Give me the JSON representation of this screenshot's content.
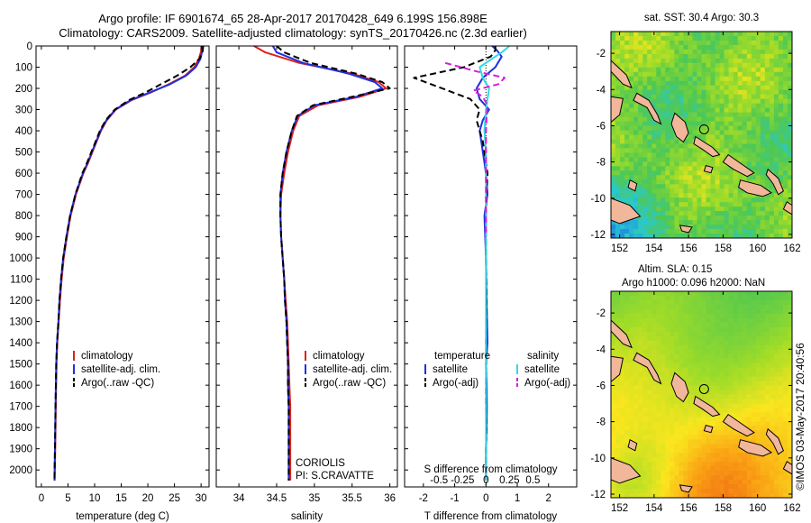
{
  "title_line1": "Argo profile: IF 6901674_65 28-Apr-2017 20170428_649 6.199S 156.898E",
  "title_line2": "Climatology: CARS2009. Satellite-adjusted climatology: synTS_20170426.nc (2.3d earlier)",
  "stamp": "©IMOS 03-May-2017 20:40:56",
  "colors": {
    "climatology": "#e0201b",
    "satellite": "#1f2fe0",
    "argo": "#000000",
    "sat_salinity": "#33d8e6",
    "argo_salinity": "#d71fd7",
    "land": "#f2b79a"
  },
  "chart_data": [
    {
      "type": "line",
      "id": "temperature",
      "xlabel": "temperature (deg C)",
      "ylabel": "",
      "xlim": [
        -1,
        31.5
      ],
      "ylim": [
        2080,
        0
      ],
      "y_reversed": true,
      "xticks": [
        0,
        5,
        10,
        15,
        20,
        25,
        30
      ],
      "yticks": [
        0,
        100,
        200,
        300,
        400,
        500,
        600,
        700,
        800,
        900,
        1000,
        1100,
        1200,
        1300,
        1400,
        1500,
        1600,
        1700,
        1800,
        1900,
        2000
      ],
      "legend": {
        "position": "bottom-left",
        "entries": [
          "climatology",
          "satellite-adj. clim.",
          "Argo(..raw -QC)"
        ]
      },
      "series": [
        {
          "name": "climatology",
          "style": "solid",
          "color": "#e0201b",
          "x": [
            30.1,
            30.0,
            29.6,
            28.7,
            27.0,
            24.0,
            20.5,
            17.0,
            14.0,
            12.3,
            11.2,
            10.4,
            9.6,
            8.8,
            7.9,
            6.5,
            5.5,
            4.8,
            4.2,
            3.8,
            3.5,
            3.25,
            3.0,
            2.85,
            2.7,
            2.6,
            2.5
          ],
          "y": [
            0,
            25,
            60,
            100,
            140,
            180,
            220,
            255,
            300,
            350,
            400,
            450,
            500,
            550,
            600,
            700,
            800,
            900,
            1000,
            1100,
            1200,
            1300,
            1400,
            1500,
            1700,
            1900,
            2050
          ]
        },
        {
          "name": "satellite-adj. clim.",
          "style": "solid",
          "color": "#1f2fe0",
          "x": [
            30.3,
            30.2,
            29.9,
            29.0,
            27.2,
            24.2,
            20.3,
            16.8,
            13.9,
            12.2,
            11.1,
            10.3,
            9.5,
            8.7,
            7.8,
            6.4,
            5.4,
            4.7,
            4.1,
            3.7,
            3.4,
            3.2,
            2.95,
            2.8,
            2.65,
            2.55,
            2.45
          ],
          "y": [
            0,
            25,
            60,
            100,
            140,
            180,
            220,
            255,
            300,
            350,
            400,
            450,
            500,
            550,
            600,
            700,
            800,
            900,
            1000,
            1100,
            1200,
            1300,
            1400,
            1500,
            1700,
            1900,
            2050
          ]
        },
        {
          "name": "Argo(..raw -QC)",
          "style": "dashed",
          "color": "#000000",
          "x": [
            30.4,
            30.3,
            29.7,
            28.0,
            25.5,
            22.5,
            19.5,
            16.5,
            13.8,
            12.1,
            11.0,
            10.2,
            9.4,
            8.6,
            7.7,
            6.4,
            5.4,
            4.7,
            4.1,
            3.7,
            3.4,
            3.2,
            2.95,
            2.8,
            2.65,
            2.55,
            2.45
          ],
          "y": [
            0,
            25,
            60,
            100,
            140,
            180,
            220,
            255,
            300,
            350,
            400,
            450,
            500,
            550,
            600,
            700,
            800,
            900,
            1000,
            1100,
            1200,
            1300,
            1400,
            1500,
            1700,
            1900,
            2050
          ]
        }
      ]
    },
    {
      "type": "line",
      "id": "salinity",
      "xlabel": "salinity",
      "ylabel": "",
      "xlim": [
        33.7,
        36.1
      ],
      "ylim": [
        2080,
        0
      ],
      "y_reversed": true,
      "xticks": [
        34,
        34.5,
        35,
        35.5,
        36
      ],
      "legend": {
        "position": "bottom-right",
        "entries": [
          "climatology",
          "satellite-adj. clim.",
          "Argo(..raw -QC)"
        ]
      },
      "annotations": [
        "CORIOLIS",
        "PI: S.CRAVATTE"
      ],
      "series": [
        {
          "name": "climatology",
          "style": "solid",
          "color": "#e0201b",
          "x": [
            34.2,
            34.35,
            34.8,
            35.5,
            35.85,
            35.95,
            35.6,
            35.05,
            34.8,
            34.72,
            34.65,
            34.6,
            34.56,
            34.55,
            34.56,
            34.58,
            34.6,
            34.62,
            34.64,
            34.65,
            34.66,
            34.67,
            34.68,
            34.68,
            34.68
          ],
          "y": [
            0,
            30,
            80,
            130,
            170,
            200,
            240,
            280,
            330,
            400,
            500,
            600,
            700,
            800,
            900,
            1000,
            1100,
            1200,
            1300,
            1400,
            1500,
            1600,
            1700,
            1900,
            2050
          ]
        },
        {
          "name": "satellite-adj. clim.",
          "style": "solid",
          "color": "#1f2fe0",
          "x": [
            34.45,
            34.5,
            34.85,
            35.45,
            35.8,
            35.9,
            35.55,
            35.0,
            34.78,
            34.7,
            34.63,
            34.58,
            34.55,
            34.55,
            34.56,
            34.58,
            34.6,
            34.61,
            34.63,
            34.64,
            34.65,
            34.65,
            34.66,
            34.66,
            34.66
          ],
          "y": [
            0,
            30,
            80,
            130,
            170,
            200,
            240,
            280,
            330,
            400,
            500,
            600,
            700,
            800,
            900,
            1000,
            1100,
            1200,
            1300,
            1400,
            1500,
            1600,
            1700,
            1900,
            2050
          ]
        },
        {
          "name": "Argo(..raw -QC)",
          "style": "dashed",
          "color": "#000000",
          "x": [
            34.5,
            34.6,
            34.95,
            35.55,
            35.9,
            36.0,
            35.5,
            34.98,
            34.77,
            34.7,
            34.63,
            34.58,
            34.55,
            34.55,
            34.56,
            34.58,
            34.6,
            34.61,
            34.63,
            34.64,
            34.65,
            34.65,
            34.66,
            34.66,
            34.66
          ],
          "y": [
            0,
            30,
            80,
            130,
            170,
            200,
            240,
            280,
            330,
            400,
            500,
            600,
            700,
            800,
            900,
            1000,
            1100,
            1200,
            1300,
            1400,
            1500,
            1600,
            1700,
            1900,
            2050
          ]
        }
      ]
    },
    {
      "type": "line",
      "id": "difference",
      "xlabel": "T difference from climatology",
      "xlabel_top": "S difference from climatology",
      "xlim": [
        -2.6,
        2.9
      ],
      "ylim": [
        2080,
        0
      ],
      "y_reversed": true,
      "xticks": [
        -2,
        -1,
        0,
        1,
        2
      ],
      "xticks_top": [
        {
          "value": -1.5,
          "label": "-0.5"
        },
        {
          "value": -0.75,
          "label": "-0.25"
        },
        {
          "value": 0,
          "label": "0"
        },
        {
          "value": 0.75,
          "label": "0.25"
        },
        {
          "value": 1.5,
          "label": "0.5"
        }
      ],
      "zero_line": true,
      "legend": {
        "position": "bottom",
        "left_title": "temperature",
        "right_title": "salinity",
        "entries": [
          "satellite",
          "Argo(-adj)",
          "satellite",
          "Argo(-adj)"
        ]
      },
      "series": [
        {
          "name": "T satellite",
          "legend": "satellite",
          "style": "solid",
          "color": "#1f2fe0",
          "x": [
            0.2,
            0.35,
            0.5,
            0.3,
            -0.1,
            -0.3,
            -0.2,
            0.1,
            -0.1,
            -0.2,
            -0.15,
            -0.1,
            -0.05,
            0,
            0.05,
            -0.05,
            0,
            0.02,
            0.05,
            0,
            0.02,
            0.03,
            0.02,
            0,
            0
          ],
          "y": [
            0,
            20,
            50,
            100,
            150,
            200,
            250,
            300,
            350,
            400,
            450,
            500,
            550,
            600,
            700,
            800,
            1000,
            1200,
            1400,
            1500,
            1600,
            1700,
            1800,
            1900,
            2050
          ]
        },
        {
          "name": "T Argo",
          "legend": "Argo(-adj)",
          "style": "dashed",
          "color": "#000000",
          "x": [
            0.3,
            0.3,
            0.15,
            -0.7,
            -2.3,
            -1.4,
            -0.5,
            -0.2,
            -0.3,
            -0.2,
            -0.1,
            -0.05,
            0,
            0.05,
            0.02,
            0,
            0,
            0.02,
            0,
            0.01,
            0,
            0,
            0.02,
            0,
            0
          ],
          "y": [
            0,
            20,
            50,
            100,
            150,
            200,
            250,
            300,
            350,
            400,
            450,
            500,
            550,
            600,
            700,
            800,
            1000,
            1200,
            1400,
            1500,
            1600,
            1700,
            1800,
            1900,
            2050
          ]
        },
        {
          "name": "S satellite",
          "legend": "satellite",
          "style": "solid",
          "color": "#33d8e6",
          "x": [
            0.75,
            0.5,
            0.2,
            -0.2,
            -0.1,
            0.1,
            0.05,
            0,
            -0.05,
            0,
            0,
            0,
            0,
            0,
            0,
            0,
            0,
            0,
            0
          ],
          "y": [
            0,
            30,
            60,
            100,
            150,
            200,
            250,
            300,
            400,
            500,
            600,
            800,
            1000,
            1200,
            1400,
            1600,
            1800,
            1900,
            2050
          ]
        },
        {
          "name": "S Argo",
          "legend": "Argo(-adj)",
          "style": "dashed",
          "color": "#d71fd7",
          "x": [
            -1.3,
            -0.8,
            -0.3,
            0.6,
            0.4,
            -0.4,
            -0.1,
            0.05,
            0.02,
            0,
            0,
            0,
            0
          ],
          "y": [
            80,
            100,
            120,
            150,
            180,
            210,
            240,
            280,
            330,
            400,
            500,
            700,
            900
          ]
        }
      ]
    },
    {
      "type": "heatmap",
      "id": "sst_map",
      "title": "sat. SST: 30.4  Argo: 30.3",
      "xlim": [
        151.5,
        162
      ],
      "ylim": [
        -12.2,
        -0.8
      ],
      "xticks": [
        152,
        154,
        156,
        158,
        160,
        162
      ],
      "yticks": [
        -2,
        -4,
        -6,
        -8,
        -10,
        -12
      ],
      "marker": {
        "lon": 156.898,
        "lat": -6.199
      }
    },
    {
      "type": "heatmap",
      "id": "sla_map",
      "title": "Altim. SLA: 0.15",
      "subtitle": "Argo h1000: 0.096 h2000: NaN",
      "xlim": [
        151.5,
        162
      ],
      "ylim": [
        -12.2,
        -0.8
      ],
      "xticks": [
        152,
        154,
        156,
        158,
        160,
        162
      ],
      "yticks": [
        -2,
        -4,
        -6,
        -8,
        -10,
        -12
      ],
      "marker": {
        "lon": 156.898,
        "lat": -6.199
      }
    }
  ]
}
